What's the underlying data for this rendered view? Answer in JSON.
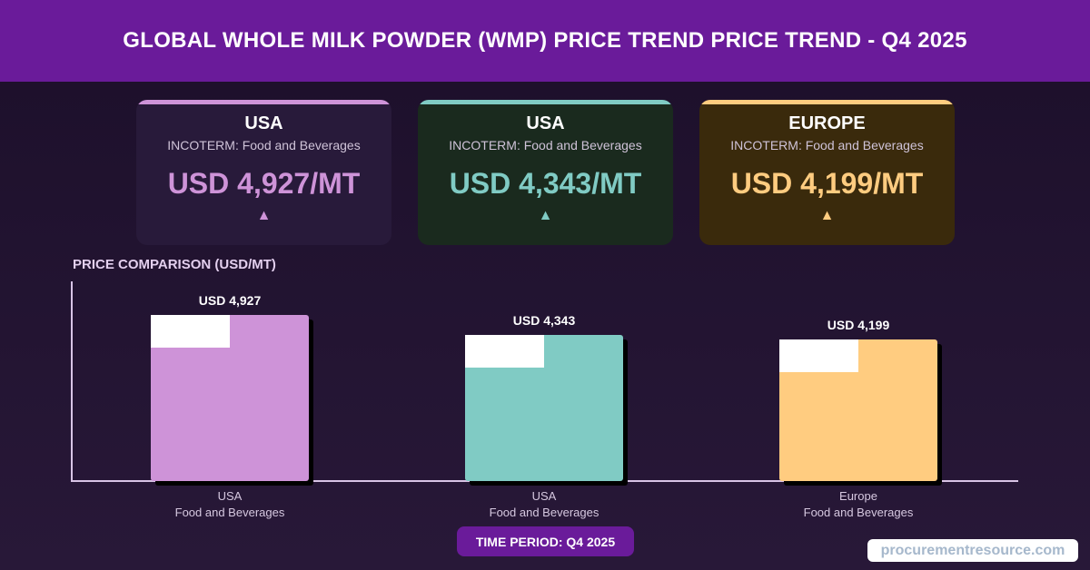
{
  "header": {
    "title": "GLOBAL WHOLE MILK POWDER (WMP) PRICE TREND PRICE TREND - Q4 2025"
  },
  "cards": [
    {
      "region": "USA",
      "incoterm": "INCOTERM: Food and Beverages",
      "price": "USD 4,927/MT",
      "arrow": "▲",
      "color": "#ce93d8",
      "bg": "#281a3a"
    },
    {
      "region": "USA",
      "incoterm": "INCOTERM: Food and Beverages",
      "price": "USD 4,343/MT",
      "arrow": "▲",
      "color": "#80cbc4",
      "bg": "#1a2a1e"
    },
    {
      "region": "EUROPE",
      "incoterm": "INCOTERM: Food and Beverages",
      "price": "USD 4,199/MT",
      "arrow": "▲",
      "color": "#ffcc80",
      "bg": "#3a2a0c"
    }
  ],
  "chart_data": {
    "type": "bar",
    "title": "PRICE COMPARISON (USD/MT)",
    "categories": [
      "USA\nFood and Beverages",
      "USA\nFood and Beverages",
      "Europe\nFood and Beverages"
    ],
    "category_lines": [
      [
        "USA",
        "Food and Beverages"
      ],
      [
        "USA",
        "Food and Beverages"
      ],
      [
        "Europe",
        "Food and Beverages"
      ]
    ],
    "values": [
      4927,
      4343,
      4199
    ],
    "value_labels": [
      "USD 4,927",
      "USD 4,343",
      "USD 4,199"
    ],
    "colors": [
      "#ce93d8",
      "#80cbc4",
      "#ffcc80"
    ],
    "ylim": [
      0,
      5920
    ],
    "xlabel": "",
    "ylabel": ""
  },
  "footer": {
    "period": "TIME PERIOD: Q4 2025",
    "brand": "procurementresource.com"
  }
}
